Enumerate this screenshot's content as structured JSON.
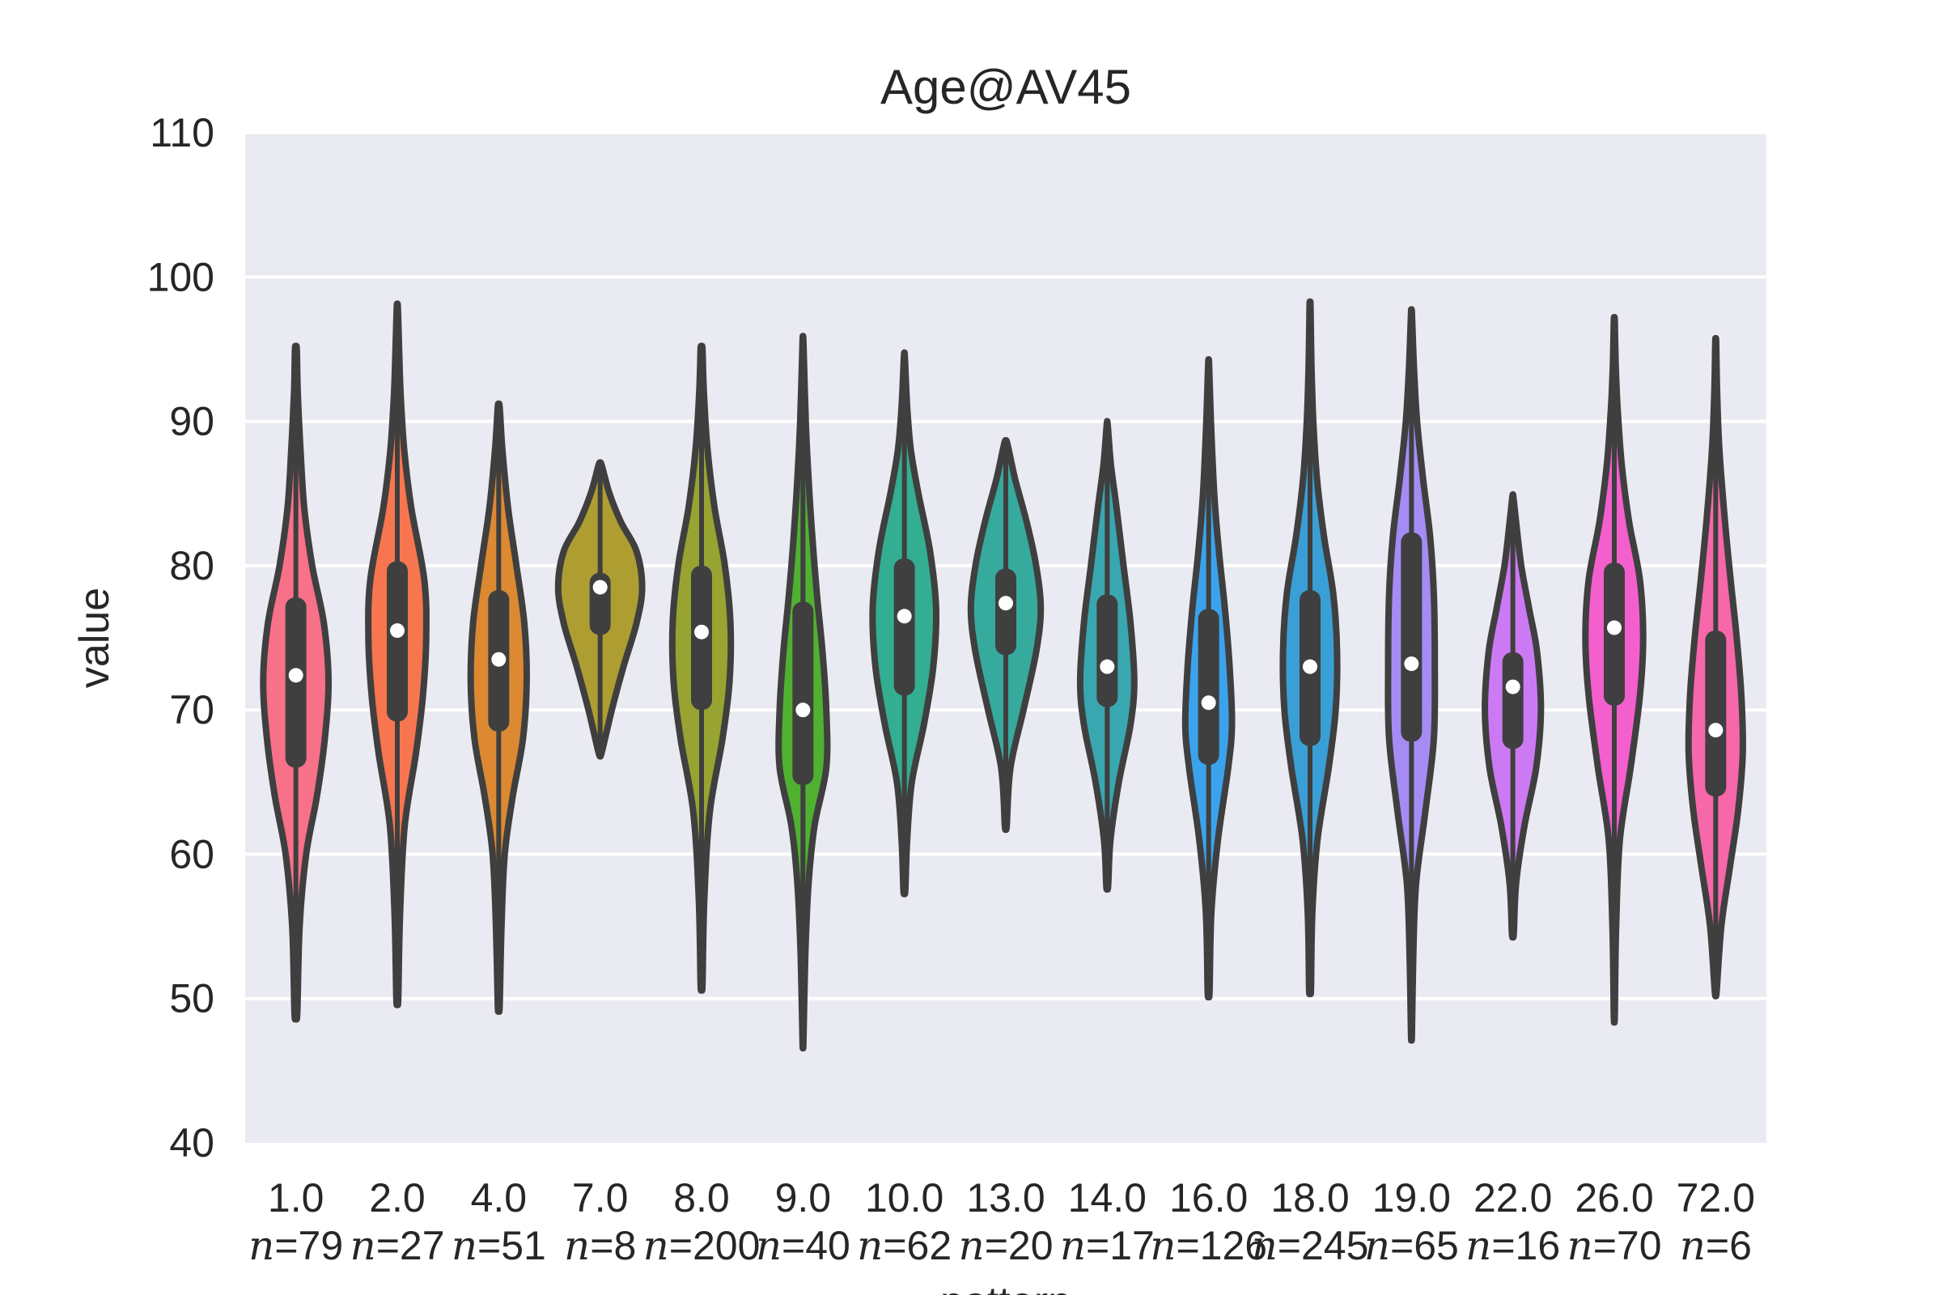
{
  "chart_data": {
    "type": "violin",
    "title": "Age@AV45",
    "xlabel": "pattern",
    "ylabel": "value",
    "ylim": [
      40,
      110
    ],
    "yticks": [
      40,
      50,
      60,
      70,
      80,
      90,
      100,
      110
    ],
    "grid": true,
    "categories": [
      {
        "label": "1.0",
        "n_label": "=79",
        "color": "#f77189",
        "min": 49.0,
        "max": 95.0,
        "q1": 66.0,
        "median": 72.4,
        "q3": 77.8,
        "density": [
          [
            49,
            0.03
          ],
          [
            55,
            0.08
          ],
          [
            60,
            0.22
          ],
          [
            64,
            0.45
          ],
          [
            68,
            0.62
          ],
          [
            72,
            0.7
          ],
          [
            76,
            0.6
          ],
          [
            80,
            0.35
          ],
          [
            84,
            0.18
          ],
          [
            88,
            0.1
          ],
          [
            92,
            0.04
          ],
          [
            95,
            0.02
          ]
        ]
      },
      {
        "label": "2.0",
        "n_label": "=27",
        "color": "#f7754f",
        "min": 50.0,
        "max": 98.0,
        "q1": 69.2,
        "median": 75.5,
        "q3": 80.3,
        "density": [
          [
            50,
            0.02
          ],
          [
            56,
            0.06
          ],
          [
            62,
            0.16
          ],
          [
            67,
            0.4
          ],
          [
            71,
            0.55
          ],
          [
            75,
            0.62
          ],
          [
            79,
            0.58
          ],
          [
            84,
            0.3
          ],
          [
            88,
            0.15
          ],
          [
            92,
            0.07
          ],
          [
            96,
            0.03
          ],
          [
            98,
            0.01
          ]
        ]
      },
      {
        "label": "4.0",
        "n_label": "=51",
        "color": "#dc8932",
        "min": 49.5,
        "max": 91.0,
        "q1": 68.5,
        "median": 73.5,
        "q3": 78.3,
        "density": [
          [
            49.5,
            0.02
          ],
          [
            55,
            0.06
          ],
          [
            60,
            0.13
          ],
          [
            64,
            0.3
          ],
          [
            68,
            0.52
          ],
          [
            72,
            0.6
          ],
          [
            76,
            0.55
          ],
          [
            80,
            0.38
          ],
          [
            84,
            0.2
          ],
          [
            88,
            0.08
          ],
          [
            91,
            0.02
          ]
        ]
      },
      {
        "label": "7.0",
        "n_label": "=8",
        "color": "#ae9d31",
        "min": 67.0,
        "max": 87.0,
        "q1": 75.2,
        "median": 78.5,
        "q3": 79.5,
        "density": [
          [
            67,
            0.03
          ],
          [
            70,
            0.25
          ],
          [
            73,
            0.5
          ],
          [
            76,
            0.78
          ],
          [
            78.5,
            0.9
          ],
          [
            81,
            0.78
          ],
          [
            83,
            0.45
          ],
          [
            85,
            0.2
          ],
          [
            87,
            0.03
          ]
        ]
      },
      {
        "label": "8.0",
        "n_label": "=200",
        "color": "#97a431",
        "min": 51.0,
        "max": 95.0,
        "q1": 70.0,
        "median": 75.4,
        "q3": 80.0,
        "density": [
          [
            51,
            0.02
          ],
          [
            57,
            0.06
          ],
          [
            63,
            0.18
          ],
          [
            68,
            0.45
          ],
          [
            72,
            0.6
          ],
          [
            76,
            0.62
          ],
          [
            80,
            0.5
          ],
          [
            84,
            0.28
          ],
          [
            88,
            0.13
          ],
          [
            92,
            0.05
          ],
          [
            95,
            0.02
          ]
        ]
      },
      {
        "label": "9.0",
        "n_label": "=40",
        "color": "#50b131",
        "min": 47.0,
        "max": 95.5,
        "q1": 64.8,
        "median": 70.0,
        "q3": 77.5,
        "density": [
          [
            47,
            0.01
          ],
          [
            53,
            0.05
          ],
          [
            58,
            0.12
          ],
          [
            62,
            0.25
          ],
          [
            66,
            0.5
          ],
          [
            70,
            0.5
          ],
          [
            74,
            0.42
          ],
          [
            78,
            0.3
          ],
          [
            82,
            0.2
          ],
          [
            86,
            0.12
          ],
          [
            90,
            0.06
          ],
          [
            95.5,
            0.01
          ]
        ]
      },
      {
        "label": "10.0",
        "n_label": "=62",
        "color": "#34ae91",
        "min": 57.5,
        "max": 94.5,
        "q1": 71.0,
        "median": 76.5,
        "q3": 80.5,
        "density": [
          [
            57.5,
            0.02
          ],
          [
            61,
            0.06
          ],
          [
            65,
            0.16
          ],
          [
            69,
            0.42
          ],
          [
            73,
            0.62
          ],
          [
            77,
            0.68
          ],
          [
            81,
            0.55
          ],
          [
            85,
            0.3
          ],
          [
            88,
            0.14
          ],
          [
            91,
            0.06
          ],
          [
            94.5,
            0.01
          ]
        ]
      },
      {
        "label": "13.0",
        "n_label": "=20",
        "color": "#37aa9e",
        "min": 62.0,
        "max": 88.5,
        "q1": 73.8,
        "median": 77.4,
        "q3": 79.8,
        "density": [
          [
            62,
            0.02
          ],
          [
            66,
            0.1
          ],
          [
            70,
            0.38
          ],
          [
            74,
            0.65
          ],
          [
            77,
            0.75
          ],
          [
            80,
            0.65
          ],
          [
            83,
            0.45
          ],
          [
            86,
            0.2
          ],
          [
            88.5,
            0.03
          ]
        ]
      },
      {
        "label": "14.0",
        "n_label": "=17",
        "color": "#39a7b0",
        "min": 57.8,
        "max": 89.8,
        "q1": 70.2,
        "median": 73.0,
        "q3": 78.0,
        "density": [
          [
            57.8,
            0.02
          ],
          [
            61,
            0.07
          ],
          [
            65,
            0.25
          ],
          [
            69,
            0.5
          ],
          [
            72,
            0.58
          ],
          [
            76,
            0.5
          ],
          [
            80,
            0.35
          ],
          [
            84,
            0.2
          ],
          [
            87,
            0.08
          ],
          [
            89.8,
            0.01
          ]
        ]
      },
      {
        "label": "16.0",
        "n_label": "=126",
        "color": "#3ba3ec",
        "min": 50.5,
        "max": 94.0,
        "q1": 66.2,
        "median": 70.5,
        "q3": 77.0,
        "density": [
          [
            50.5,
            0.02
          ],
          [
            56,
            0.06
          ],
          [
            61,
            0.2
          ],
          [
            66,
            0.42
          ],
          [
            69,
            0.5
          ],
          [
            73,
            0.45
          ],
          [
            77,
            0.35
          ],
          [
            81,
            0.22
          ],
          [
            85,
            0.12
          ],
          [
            90,
            0.05
          ],
          [
            94,
            0.01
          ]
        ]
      },
      {
        "label": "18.0",
        "n_label": "=245",
        "color": "#3a9fd6",
        "min": 50.7,
        "max": 98.0,
        "q1": 67.5,
        "median": 73.0,
        "q3": 78.3,
        "density": [
          [
            50.7,
            0.02
          ],
          [
            56,
            0.05
          ],
          [
            61,
            0.16
          ],
          [
            66,
            0.4
          ],
          [
            70,
            0.55
          ],
          [
            74,
            0.58
          ],
          [
            78,
            0.5
          ],
          [
            82,
            0.3
          ],
          [
            86,
            0.15
          ],
          [
            90,
            0.07
          ],
          [
            94,
            0.03
          ],
          [
            98,
            0.01
          ]
        ]
      },
      {
        "label": "19.0",
        "n_label": "=65",
        "color": "#a48cf4",
        "min": 47.5,
        "max": 97.5,
        "q1": 67.8,
        "median": 73.2,
        "q3": 82.3,
        "density": [
          [
            47.5,
            0.01
          ],
          [
            53,
            0.04
          ],
          [
            58,
            0.1
          ],
          [
            63,
            0.3
          ],
          [
            68,
            0.48
          ],
          [
            73,
            0.5
          ],
          [
            78,
            0.48
          ],
          [
            82,
            0.4
          ],
          [
            86,
            0.25
          ],
          [
            90,
            0.12
          ],
          [
            94,
            0.05
          ],
          [
            97.5,
            0.01
          ]
        ]
      },
      {
        "label": "22.0",
        "n_label": "=16",
        "color": "#cc7af4",
        "min": 54.5,
        "max": 84.8,
        "q1": 67.3,
        "median": 71.6,
        "q3": 74.0,
        "density": [
          [
            54.5,
            0.02
          ],
          [
            58,
            0.07
          ],
          [
            62,
            0.25
          ],
          [
            66,
            0.5
          ],
          [
            70,
            0.6
          ],
          [
            74,
            0.52
          ],
          [
            77,
            0.35
          ],
          [
            80,
            0.18
          ],
          [
            83,
            0.07
          ],
          [
            84.8,
            0.01
          ]
        ]
      },
      {
        "label": "26.0",
        "n_label": "=70",
        "color": "#f45fce",
        "min": 48.8,
        "max": 97.0,
        "q1": 70.3,
        "median": 75.7,
        "q3": 80.2,
        "density": [
          [
            48.8,
            0.01
          ],
          [
            55,
            0.04
          ],
          [
            61,
            0.12
          ],
          [
            66,
            0.35
          ],
          [
            71,
            0.55
          ],
          [
            75,
            0.62
          ],
          [
            79,
            0.55
          ],
          [
            83,
            0.32
          ],
          [
            87,
            0.16
          ],
          [
            91,
            0.07
          ],
          [
            94,
            0.03
          ],
          [
            97,
            0.01
          ]
        ]
      },
      {
        "label": "72.0",
        "n_label": "=6",
        "color": "#f668aa",
        "min": 50.5,
        "max": 95.5,
        "q1": 64.0,
        "median": 68.6,
        "q3": 75.5,
        "density": [
          [
            50.5,
            0.02
          ],
          [
            55,
            0.12
          ],
          [
            59,
            0.3
          ],
          [
            63,
            0.48
          ],
          [
            67,
            0.58
          ],
          [
            71,
            0.55
          ],
          [
            75,
            0.45
          ],
          [
            79,
            0.32
          ],
          [
            83,
            0.2
          ],
          [
            88,
            0.08
          ],
          [
            92,
            0.03
          ],
          [
            95.5,
            0.01
          ]
        ]
      }
    ]
  }
}
